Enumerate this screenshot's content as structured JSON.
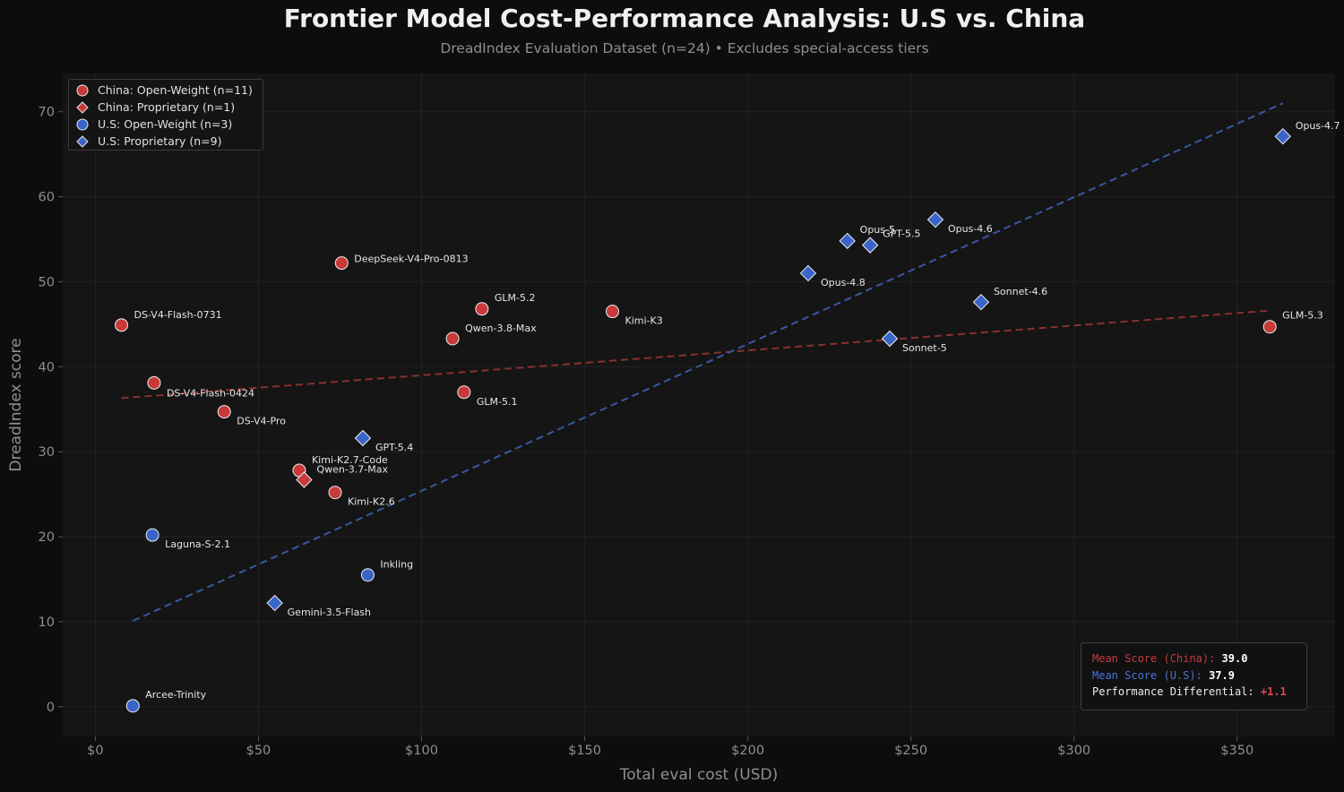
{
  "title": "Frontier Model Cost-Performance Analysis: U.S vs. China",
  "subtitle": "DreadIndex Evaluation Dataset (n=24) • Excludes special-access tiers",
  "colors": {
    "china": "#c83a3a",
    "us": "#3a64c8",
    "china_trend": "#8a3030",
    "us_trend": "#3a58a0",
    "background": "#0d0d0d",
    "plot_background": "#151515"
  },
  "legend": [
    {
      "label": "China: Open-Weight (n=11)",
      "marker": "circle",
      "color": "#c83a3a"
    },
    {
      "label": "China: Proprietary (n=1)",
      "marker": "diamond",
      "color": "#c83a3a"
    },
    {
      "label": "U.S: Open-Weight (n=3)",
      "marker": "circle",
      "color": "#3a64c8"
    },
    {
      "label": "U.S: Proprietary (n=9)",
      "marker": "diamond",
      "color": "#3a64c8"
    }
  ],
  "stats": {
    "china_label": "Mean Score (China):",
    "china_value": "39.0",
    "us_label": "Mean Score (U.S):",
    "us_value": "37.9",
    "diff_label": "Performance Differential:",
    "diff_value": "+1.1"
  },
  "chart_data": {
    "type": "scatter",
    "xlabel": "Total eval cost (USD)",
    "ylabel": "DreadIndex score",
    "xlim": [
      -10,
      380
    ],
    "ylim": [
      -3.5,
      74.5
    ],
    "xticks": [
      0,
      50,
      100,
      150,
      200,
      250,
      300,
      350
    ],
    "xtick_labels": [
      "$0",
      "$50",
      "$100",
      "$150",
      "$200",
      "$250",
      "$300",
      "$350"
    ],
    "yticks": [
      0,
      10,
      20,
      30,
      40,
      50,
      60,
      70
    ],
    "ytick_labels": [
      "0",
      "10",
      "20",
      "30",
      "40",
      "50",
      "60",
      "70"
    ],
    "grid": true,
    "legend_position": "top-left",
    "series": [
      {
        "name": "China: Open-Weight (n=11)",
        "group": "china",
        "marker": "circle",
        "points": [
          {
            "label": "DS-V4-Flash-0731",
            "x": 8,
            "y": 44.9
          },
          {
            "label": "DS-V4-Flash-0424",
            "x": 18,
            "y": 38.1
          },
          {
            "label": "DS-V4-Pro",
            "x": 39.5,
            "y": 34.7
          },
          {
            "label": "Kimi-K2.7-Code",
            "x": 62.5,
            "y": 27.8
          },
          {
            "label": "Kimi-K2.6",
            "x": 73.5,
            "y": 25.2
          },
          {
            "label": "DeepSeek-V4-Pro-0813",
            "x": 75.5,
            "y": 52.2
          },
          {
            "label": "Qwen-3.8-Max",
            "x": 109.5,
            "y": 43.3
          },
          {
            "label": "GLM-5.1",
            "x": 113,
            "y": 37.0
          },
          {
            "label": "GLM-5.2",
            "x": 118.5,
            "y": 46.8
          },
          {
            "label": "Kimi-K3",
            "x": 158.5,
            "y": 46.5
          },
          {
            "label": "GLM-5.3",
            "x": 360,
            "y": 44.7
          }
        ]
      },
      {
        "name": "China: Proprietary (n=1)",
        "group": "china",
        "marker": "diamond",
        "points": [
          {
            "label": "Qwen-3.7-Max",
            "x": 64,
            "y": 26.7
          }
        ]
      },
      {
        "name": "U.S: Open-Weight (n=3)",
        "group": "us",
        "marker": "circle",
        "points": [
          {
            "label": "Arcee-Trinity",
            "x": 11.5,
            "y": 0.1
          },
          {
            "label": "Laguna-S-2.1",
            "x": 17.5,
            "y": 20.2
          },
          {
            "label": "Inkling",
            "x": 83.5,
            "y": 15.5
          }
        ]
      },
      {
        "name": "U.S: Proprietary (n=9)",
        "group": "us",
        "marker": "diamond",
        "points": [
          {
            "label": "Gemini-3.5-Flash",
            "x": 55,
            "y": 12.2
          },
          {
            "label": "GPT-5.4",
            "x": 82,
            "y": 31.6
          },
          {
            "label": "Opus-4.8",
            "x": 218.5,
            "y": 51.0
          },
          {
            "label": "Opus-5",
            "x": 230.5,
            "y": 54.8
          },
          {
            "label": "GPT-5.5",
            "x": 237.5,
            "y": 54.3
          },
          {
            "label": "Sonnet-5",
            "x": 243.5,
            "y": 43.3
          },
          {
            "label": "Opus-4.6",
            "x": 257.5,
            "y": 57.3
          },
          {
            "label": "Sonnet-4.6",
            "x": 271.5,
            "y": 47.6
          },
          {
            "label": "Opus-4.7",
            "x": 364,
            "y": 67.1
          }
        ]
      }
    ],
    "trendlines": [
      {
        "group": "china",
        "x": [
          8,
          360
        ],
        "y": [
          36.3,
          46.6
        ]
      },
      {
        "group": "us",
        "x": [
          11.5,
          364
        ],
        "y": [
          10.1,
          71.0
        ]
      }
    ]
  }
}
